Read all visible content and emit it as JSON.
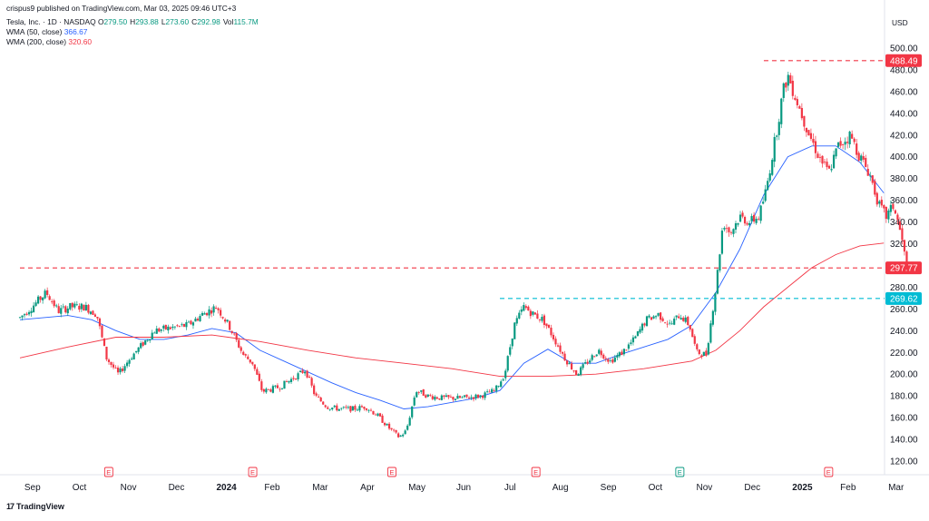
{
  "publisher_line": "crispus9 published on TradingView.com, Mar 03, 2025 09:46 UTC+3",
  "symbol": {
    "name": "Tesla, Inc. · 1D · NASDAQ",
    "ohlc": [
      {
        "label": "O",
        "value": "279.50"
      },
      {
        "label": "H",
        "value": "293.88"
      },
      {
        "label": "L",
        "value": "273.60"
      },
      {
        "label": "C",
        "value": "292.98"
      },
      {
        "label": "Vol",
        "value": "115.7M"
      }
    ]
  },
  "indicators": [
    {
      "label": "WMA (50, close)",
      "value": "366.67",
      "color": "#2962ff"
    },
    {
      "label": "WMA (200, close)",
      "value": "320.60",
      "color": "#f23645"
    }
  ],
  "footer": {
    "logo_mark": "17",
    "logo_text": "TradingView"
  },
  "colors": {
    "up": "#089981",
    "down": "#f23645",
    "resistance": "#f23645",
    "support": "#00bcd4",
    "wma50": "#2962ff",
    "wma200": "#f23645"
  },
  "chart_data": {
    "type": "candlestick",
    "currency": "USD",
    "ylim": [
      120,
      505
    ],
    "y_ticks": [
      120,
      140,
      160,
      180,
      200,
      220,
      240,
      260,
      280,
      300,
      320,
      340,
      360,
      380,
      400,
      420,
      440,
      460,
      480,
      500
    ],
    "x_ticks": [
      {
        "label": "Sep",
        "t": 0.3,
        "bold": false
      },
      {
        "label": "Oct",
        "t": 1.3,
        "bold": false
      },
      {
        "label": "Nov",
        "t": 2.3,
        "bold": false
      },
      {
        "label": "Dec",
        "t": 3.3,
        "bold": false
      },
      {
        "label": "2024",
        "t": 4.3,
        "bold": true
      },
      {
        "label": "Feb",
        "t": 5.3,
        "bold": false
      },
      {
        "label": "Mar",
        "t": 6.3,
        "bold": false
      },
      {
        "label": "Apr",
        "t": 7.3,
        "bold": false
      },
      {
        "label": "May",
        "t": 8.3,
        "bold": false
      },
      {
        "label": "Jun",
        "t": 9.3,
        "bold": false
      },
      {
        "label": "Jul",
        "t": 10.3,
        "bold": false
      },
      {
        "label": "Aug",
        "t": 11.3,
        "bold": false
      },
      {
        "label": "Sep",
        "t": 12.3,
        "bold": false
      },
      {
        "label": "Oct",
        "t": 13.3,
        "bold": false
      },
      {
        "label": "Nov",
        "t": 14.3,
        "bold": false
      },
      {
        "label": "Dec",
        "t": 15.3,
        "bold": false
      },
      {
        "label": "2025",
        "t": 16.3,
        "bold": true
      },
      {
        "label": "Feb",
        "t": 17.3,
        "bold": false
      },
      {
        "label": "Mar",
        "t": 18.3,
        "bold": false
      }
    ],
    "earnings_markers": [
      {
        "t": 1.85,
        "label": "E",
        "kind": "past"
      },
      {
        "t": 4.85,
        "label": "E",
        "kind": "past"
      },
      {
        "t": 7.75,
        "label": "E",
        "kind": "past"
      },
      {
        "t": 10.75,
        "label": "E",
        "kind": "past"
      },
      {
        "t": 13.75,
        "label": "E",
        "kind": "upcoming"
      },
      {
        "t": 16.85,
        "label": "E",
        "kind": "past"
      }
    ],
    "horizontal_levels": [
      {
        "value": 488.49,
        "label": "488.49",
        "style": "dashed",
        "color": "#f23645",
        "t_start": 15.5
      },
      {
        "value": 297.77,
        "label": "297.77",
        "style": "dashed",
        "color": "#f23645",
        "t_start": 0
      },
      {
        "value": 269.62,
        "label": "269.62",
        "style": "dashed",
        "color": "#00bcd4",
        "t_start": 10.0
      }
    ],
    "series": [
      {
        "name": "WMA (50, close)",
        "color": "#2962ff",
        "points": [
          [
            0,
            250
          ],
          [
            0.5,
            252
          ],
          [
            1.0,
            254
          ],
          [
            1.5,
            250
          ],
          [
            2.0,
            240
          ],
          [
            2.5,
            232
          ],
          [
            3.0,
            232
          ],
          [
            3.5,
            236
          ],
          [
            4.0,
            242
          ],
          [
            4.5,
            238
          ],
          [
            5.0,
            222
          ],
          [
            5.5,
            212
          ],
          [
            6.0,
            202
          ],
          [
            6.5,
            192
          ],
          [
            7.0,
            183
          ],
          [
            7.5,
            176
          ],
          [
            8.0,
            168
          ],
          [
            8.5,
            170
          ],
          [
            9.0,
            174
          ],
          [
            9.5,
            178
          ],
          [
            10.0,
            185
          ],
          [
            10.5,
            210
          ],
          [
            11.0,
            223
          ],
          [
            11.5,
            210
          ],
          [
            12.0,
            210
          ],
          [
            12.5,
            218
          ],
          [
            13.0,
            225
          ],
          [
            13.5,
            232
          ],
          [
            14.0,
            245
          ],
          [
            14.5,
            275
          ],
          [
            15.0,
            315
          ],
          [
            15.5,
            365
          ],
          [
            16.0,
            400
          ],
          [
            16.5,
            410
          ],
          [
            17.0,
            410
          ],
          [
            17.5,
            395
          ],
          [
            18.0,
            366.67
          ]
        ]
      },
      {
        "name": "WMA (200, close)",
        "color": "#f23645",
        "points": [
          [
            0,
            215
          ],
          [
            1.0,
            225
          ],
          [
            2.0,
            234
          ],
          [
            3.0,
            234
          ],
          [
            4.0,
            236
          ],
          [
            5.0,
            230
          ],
          [
            6.0,
            222
          ],
          [
            7.0,
            215
          ],
          [
            8.0,
            210
          ],
          [
            9.0,
            205
          ],
          [
            10.0,
            198
          ],
          [
            11.0,
            198
          ],
          [
            12.0,
            200
          ],
          [
            13.0,
            205
          ],
          [
            14.0,
            212
          ],
          [
            14.5,
            222
          ],
          [
            15.0,
            240
          ],
          [
            15.5,
            262
          ],
          [
            16.0,
            280
          ],
          [
            16.5,
            298
          ],
          [
            17.0,
            310
          ],
          [
            17.5,
            318
          ],
          [
            18.0,
            320.6
          ]
        ]
      }
    ],
    "close_path": [
      [
        0,
        252
      ],
      [
        0.25,
        262
      ],
      [
        0.55,
        275
      ],
      [
        0.8,
        258
      ],
      [
        1.05,
        262
      ],
      [
        1.35,
        262
      ],
      [
        1.6,
        255
      ],
      [
        1.8,
        215
      ],
      [
        2.05,
        200
      ],
      [
        2.3,
        215
      ],
      [
        2.5,
        225
      ],
      [
        2.8,
        240
      ],
      [
        3.2,
        243
      ],
      [
        3.5,
        245
      ],
      [
        3.8,
        255
      ],
      [
        4.1,
        262
      ],
      [
        4.35,
        245
      ],
      [
        4.65,
        218
      ],
      [
        4.85,
        210
      ],
      [
        5.05,
        184
      ],
      [
        5.4,
        188
      ],
      [
        5.75,
        198
      ],
      [
        5.95,
        204
      ],
      [
        6.15,
        180
      ],
      [
        6.4,
        170
      ],
      [
        6.65,
        168
      ],
      [
        6.95,
        168
      ],
      [
        7.2,
        170
      ],
      [
        7.45,
        162
      ],
      [
        7.7,
        150
      ],
      [
        7.9,
        142
      ],
      [
        8.05,
        148
      ],
      [
        8.25,
        185
      ],
      [
        8.5,
        180
      ],
      [
        8.8,
        178
      ],
      [
        9.2,
        178
      ],
      [
        9.6,
        180
      ],
      [
        9.9,
        185
      ],
      [
        10.1,
        200
      ],
      [
        10.3,
        245
      ],
      [
        10.5,
        262
      ],
      [
        10.7,
        255
      ],
      [
        10.9,
        250
      ],
      [
        11.1,
        235
      ],
      [
        11.35,
        215
      ],
      [
        11.6,
        200
      ],
      [
        11.8,
        210
      ],
      [
        12.05,
        222
      ],
      [
        12.3,
        212
      ],
      [
        12.55,
        220
      ],
      [
        12.8,
        232
      ],
      [
        13.05,
        250
      ],
      [
        13.3,
        255
      ],
      [
        13.55,
        245
      ],
      [
        13.75,
        255
      ],
      [
        13.95,
        245
      ],
      [
        14.1,
        220
      ],
      [
        14.3,
        218
      ],
      [
        14.5,
        280
      ],
      [
        14.65,
        340
      ],
      [
        14.8,
        330
      ],
      [
        15.0,
        345
      ],
      [
        15.2,
        340
      ],
      [
        15.4,
        345
      ],
      [
        15.55,
        370
      ],
      [
        15.75,
        420
      ],
      [
        15.9,
        460
      ],
      [
        16.0,
        475
      ],
      [
        16.2,
        450
      ],
      [
        16.45,
        420
      ],
      [
        16.65,
        400
      ],
      [
        16.85,
        385
      ],
      [
        17.05,
        410
      ],
      [
        17.3,
        420
      ],
      [
        17.5,
        400
      ],
      [
        17.7,
        385
      ],
      [
        17.9,
        355
      ],
      [
        18.05,
        345
      ],
      [
        18.2,
        355
      ],
      [
        18.35,
        330
      ],
      [
        18.5,
        292.98
      ]
    ]
  }
}
